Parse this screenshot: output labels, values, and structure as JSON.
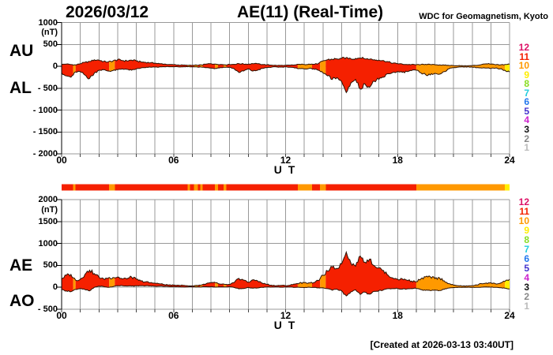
{
  "header": {
    "date": "2026/03/12",
    "title": "AE(11) (Real-Time)",
    "source": "WDC for Geomagnetism, Kyoto"
  },
  "footer": {
    "created_at": "[Created at 2026-03-13 03:40UT]"
  },
  "station_legend": {
    "items": [
      {
        "count": "12",
        "color": "#DD1166"
      },
      {
        "count": "11",
        "color": "#F52000"
      },
      {
        "count": "10",
        "color": "#FF9900"
      },
      {
        "count": "9",
        "color": "#FFEE00"
      },
      {
        "count": "8",
        "color": "#88DD22"
      },
      {
        "count": "7",
        "color": "#22CCDD"
      },
      {
        "count": "6",
        "color": "#2277EE"
      },
      {
        "count": "5",
        "color": "#4433CC"
      },
      {
        "count": "4",
        "color": "#CC22CC"
      },
      {
        "count": "3",
        "color": "#111111"
      },
      {
        "count": "2",
        "color": "#888888"
      },
      {
        "count": "1",
        "color": "#BBBBBB"
      }
    ]
  },
  "colors": {
    "grid": "#999999",
    "axis": "#000000",
    "curve_outline": "#2A1000",
    "background": "#FFFFFF"
  },
  "station_colors": {
    "11": "#F52000",
    "10": "#FF9900",
    "9": "#FFEE00"
  },
  "quality_segments": [
    [
      0,
      0.62,
      "11"
    ],
    [
      0.62,
      0.75,
      "10"
    ],
    [
      0.75,
      2.55,
      "11"
    ],
    [
      2.55,
      2.85,
      "10"
    ],
    [
      2.85,
      6.75,
      "11"
    ],
    [
      6.75,
      6.88,
      "10"
    ],
    [
      6.88,
      7.1,
      "11"
    ],
    [
      7.1,
      7.3,
      "10"
    ],
    [
      7.3,
      7.42,
      "11"
    ],
    [
      7.42,
      7.55,
      "10"
    ],
    [
      7.55,
      8.22,
      "11"
    ],
    [
      8.22,
      8.38,
      "10"
    ],
    [
      8.38,
      8.68,
      "11"
    ],
    [
      8.68,
      8.82,
      "10"
    ],
    [
      8.82,
      12.65,
      "11"
    ],
    [
      12.65,
      13.42,
      "10"
    ],
    [
      13.42,
      13.85,
      "11"
    ],
    [
      13.85,
      14.15,
      "10"
    ],
    [
      14.15,
      19.0,
      "11"
    ],
    [
      19.0,
      23.75,
      "10"
    ],
    [
      23.75,
      24,
      "9"
    ]
  ],
  "chart_data": [
    {
      "type": "area",
      "name": "AU-AL",
      "side_labels": [
        "AU",
        "AL"
      ],
      "unit": "(nT)",
      "xlabel": "U T",
      "ylim": [
        -2000,
        1000
      ],
      "xlim_hours": [
        0,
        24
      ],
      "grid": true,
      "x_step_hours": 0.25,
      "y_ticks": [
        {
          "value": 1000,
          "label": "1000"
        },
        {
          "value": 500,
          "label": "500"
        },
        {
          "value": 0,
          "label": "0"
        },
        {
          "value": -500,
          "label": "- 500"
        },
        {
          "value": -1000,
          "label": "- 1000"
        },
        {
          "value": -1500,
          "label": "- 1500"
        },
        {
          "value": -2000,
          "label": "- 2000"
        }
      ],
      "x_ticks": [
        {
          "hour": 0,
          "label": "00"
        },
        {
          "hour": 6,
          "label": "06"
        },
        {
          "hour": 12,
          "label": "12"
        },
        {
          "hour": 18,
          "label": "18"
        },
        {
          "hour": 24,
          "label": "24"
        }
      ],
      "series": [
        {
          "name": "AU",
          "values": [
            40,
            50,
            40,
            30,
            60,
            90,
            110,
            150,
            140,
            110,
            100,
            120,
            150,
            130,
            120,
            140,
            120,
            100,
            90,
            80,
            70,
            60,
            50,
            40,
            35,
            30,
            25,
            20,
            20,
            25,
            30,
            50,
            60,
            50,
            40,
            35,
            40,
            45,
            60,
            50,
            50,
            60,
            55,
            40,
            35,
            25,
            20,
            20,
            20,
            25,
            30,
            45,
            40,
            50,
            45,
            60,
            120,
            150,
            160,
            170,
            180,
            200,
            170,
            180,
            190,
            170,
            160,
            150,
            140,
            130,
            100,
            70,
            60,
            50,
            40,
            40,
            35,
            40,
            45,
            40,
            35,
            30,
            25,
            20,
            15,
            15,
            10,
            10,
            15,
            20,
            40,
            55,
            50,
            35,
            30,
            40,
            50
          ]
        },
        {
          "name": "AL",
          "values": [
            -150,
            -220,
            -250,
            -130,
            -120,
            -200,
            -280,
            -160,
            -90,
            -80,
            -110,
            -100,
            -80,
            -60,
            -70,
            -90,
            -60,
            -40,
            -30,
            -20,
            -20,
            -15,
            -10,
            -10,
            -10,
            -15,
            -15,
            -10,
            -10,
            -15,
            -20,
            -30,
            -40,
            -50,
            -30,
            -25,
            -20,
            -60,
            -140,
            -110,
            -60,
            -110,
            -90,
            -50,
            -30,
            -20,
            -15,
            -20,
            -15,
            -20,
            -40,
            -50,
            -60,
            -50,
            -60,
            -90,
            -150,
            -220,
            -300,
            -260,
            -350,
            -600,
            -380,
            -300,
            -520,
            -400,
            -480,
            -340,
            -300,
            -250,
            -170,
            -140,
            -120,
            -140,
            -120,
            -100,
            -90,
            -150,
            -190,
            -200,
            -160,
            -180,
            -120,
            -60,
            -30,
            -20,
            -15,
            -15,
            -20,
            -30,
            -40,
            -40,
            -50,
            -40,
            -60,
            -90,
            -130
          ]
        }
      ]
    },
    {
      "type": "area",
      "name": "AE-AO",
      "side_labels": [
        "AE",
        "AO"
      ],
      "unit": "(nT)",
      "xlabel": "U T",
      "ylim": [
        -500,
        2000
      ],
      "xlim_hours": [
        0,
        24
      ],
      "grid": true,
      "x_step_hours": 0.25,
      "y_ticks": [
        {
          "value": 2000,
          "label": "2000"
        },
        {
          "value": 1500,
          "label": "1500"
        },
        {
          "value": 1000,
          "label": "1000"
        },
        {
          "value": 500,
          "label": "500"
        },
        {
          "value": 0,
          "label": "0"
        },
        {
          "value": -500,
          "label": "- 500"
        }
      ],
      "x_ticks": [
        {
          "hour": 0,
          "label": "00"
        },
        {
          "hour": 6,
          "label": "06"
        },
        {
          "hour": 12,
          "label": "12"
        },
        {
          "hour": 18,
          "label": "18"
        },
        {
          "hour": 24,
          "label": "24"
        }
      ],
      "series": [
        {
          "name": "AE",
          "values": [
            190,
            270,
            290,
            160,
            180,
            290,
            390,
            310,
            230,
            190,
            210,
            220,
            230,
            190,
            190,
            230,
            180,
            140,
            120,
            100,
            90,
            75,
            60,
            50,
            45,
            45,
            40,
            30,
            30,
            40,
            50,
            80,
            100,
            100,
            70,
            60,
            60,
            105,
            200,
            160,
            110,
            170,
            145,
            90,
            65,
            45,
            35,
            40,
            35,
            45,
            70,
            95,
            100,
            100,
            105,
            150,
            270,
            370,
            460,
            430,
            530,
            800,
            550,
            480,
            710,
            570,
            640,
            490,
            440,
            380,
            270,
            210,
            180,
            190,
            160,
            140,
            125,
            190,
            235,
            240,
            195,
            210,
            145,
            80,
            45,
            35,
            25,
            25,
            35,
            50,
            80,
            95,
            100,
            75,
            90,
            130,
            180
          ]
        },
        {
          "name": "AO",
          "values": [
            -55,
            -85,
            -105,
            -50,
            -30,
            -55,
            -85,
            -5,
            25,
            15,
            -5,
            10,
            35,
            35,
            25,
            25,
            30,
            30,
            30,
            30,
            25,
            23,
            20,
            15,
            13,
            8,
            5,
            5,
            5,
            5,
            5,
            10,
            10,
            0,
            5,
            5,
            10,
            -8,
            -40,
            -30,
            -5,
            -25,
            -18,
            -5,
            3,
            3,
            3,
            0,
            3,
            3,
            -5,
            -3,
            -10,
            0,
            -8,
            -15,
            -15,
            -35,
            -70,
            -45,
            -85,
            -200,
            -105,
            -60,
            -165,
            -115,
            -160,
            -95,
            -80,
            -60,
            -35,
            -35,
            -30,
            -45,
            -40,
            -30,
            -28,
            -55,
            -73,
            -80,
            -63,
            -75,
            -48,
            -20,
            -8,
            -3,
            -3,
            -3,
            -3,
            -5,
            0,
            8,
            0,
            -3,
            -15,
            -25,
            -40
          ]
        }
      ]
    }
  ]
}
